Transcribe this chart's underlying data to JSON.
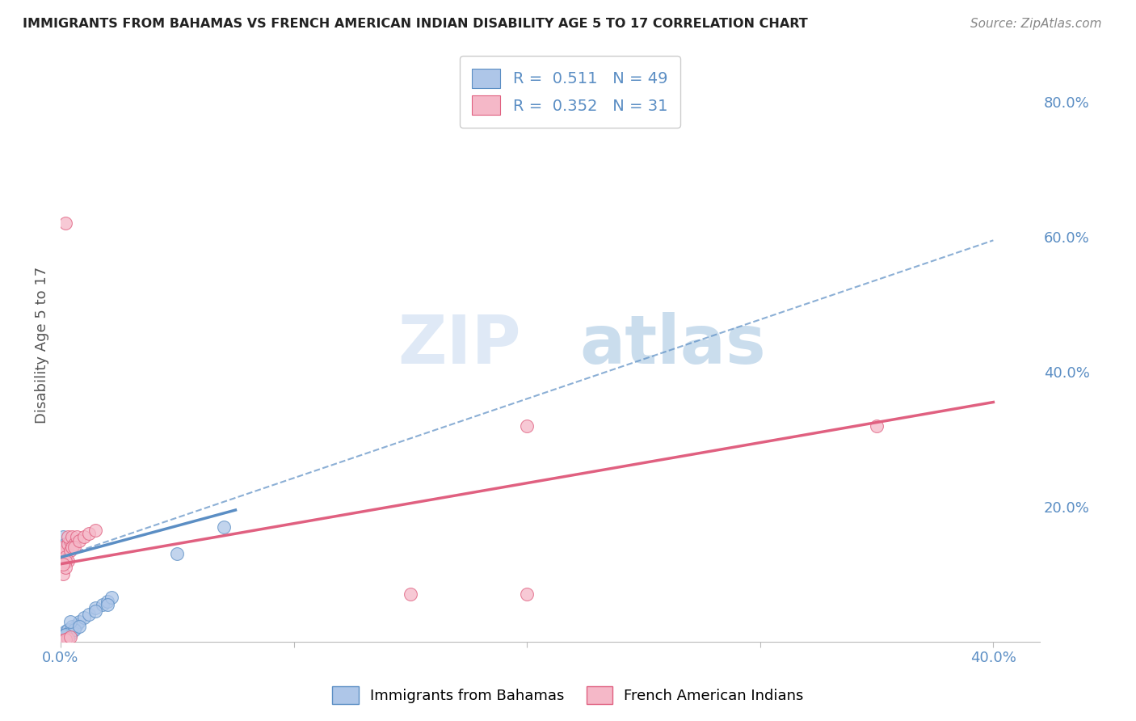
{
  "title": "IMMIGRANTS FROM BAHAMAS VS FRENCH AMERICAN INDIAN DISABILITY AGE 5 TO 17 CORRELATION CHART",
  "source": "Source: ZipAtlas.com",
  "ylabel": "Disability Age 5 to 17",
  "xlim": [
    0.0,
    0.42
  ],
  "ylim": [
    0.0,
    0.88
  ],
  "watermark": "ZIPatlas",
  "legend_blue_r": "0.511",
  "legend_blue_n": "49",
  "legend_pink_r": "0.352",
  "legend_pink_n": "31",
  "legend_label_blue": "Immigrants from Bahamas",
  "legend_label_pink": "French American Indians",
  "blue_color": "#aec6e8",
  "pink_color": "#f5b8c8",
  "blue_line_color": "#5b8ec4",
  "pink_line_color": "#e06080",
  "blue_scatter": [
    [
      0.001,
      0.005
    ],
    [
      0.002,
      0.008
    ],
    [
      0.001,
      0.003
    ],
    [
      0.003,
      0.01
    ],
    [
      0.002,
      0.012
    ],
    [
      0.001,
      0.006
    ],
    [
      0.004,
      0.015
    ],
    [
      0.002,
      0.007
    ],
    [
      0.003,
      0.009
    ],
    [
      0.001,
      0.004
    ],
    [
      0.002,
      0.011
    ],
    [
      0.003,
      0.013
    ],
    [
      0.001,
      0.002
    ],
    [
      0.004,
      0.018
    ],
    [
      0.002,
      0.005
    ],
    [
      0.005,
      0.014
    ],
    [
      0.003,
      0.016
    ],
    [
      0.006,
      0.02
    ],
    [
      0.004,
      0.01
    ],
    [
      0.002,
      0.003
    ],
    [
      0.001,
      0.008
    ],
    [
      0.001,
      0.012
    ],
    [
      0.002,
      0.015
    ],
    [
      0.003,
      0.018
    ],
    [
      0.001,
      0.001
    ],
    [
      0.002,
      0.004
    ],
    [
      0.001,
      0.007
    ],
    [
      0.003,
      0.011
    ],
    [
      0.007,
      0.025
    ],
    [
      0.005,
      0.022
    ],
    [
      0.008,
      0.03
    ],
    [
      0.006,
      0.018
    ],
    [
      0.01,
      0.035
    ],
    [
      0.012,
      0.04
    ],
    [
      0.015,
      0.05
    ],
    [
      0.018,
      0.055
    ],
    [
      0.02,
      0.06
    ],
    [
      0.022,
      0.065
    ],
    [
      0.004,
      0.03
    ],
    [
      0.008,
      0.022
    ],
    [
      0.015,
      0.045
    ],
    [
      0.02,
      0.055
    ],
    [
      0.001,
      0.155
    ],
    [
      0.002,
      0.145
    ],
    [
      0.003,
      0.14
    ],
    [
      0.05,
      0.13
    ],
    [
      0.07,
      0.17
    ],
    [
      0.001,
      0.009
    ],
    [
      0.002,
      0.01
    ]
  ],
  "pink_scatter": [
    [
      0.001,
      0.13
    ],
    [
      0.002,
      0.135
    ],
    [
      0.001,
      0.14
    ],
    [
      0.003,
      0.145
    ],
    [
      0.002,
      0.125
    ],
    [
      0.004,
      0.15
    ],
    [
      0.003,
      0.155
    ],
    [
      0.005,
      0.155
    ],
    [
      0.004,
      0.135
    ],
    [
      0.006,
      0.145
    ],
    [
      0.003,
      0.12
    ],
    [
      0.005,
      0.14
    ],
    [
      0.002,
      0.12
    ],
    [
      0.007,
      0.155
    ],
    [
      0.006,
      0.14
    ],
    [
      0.008,
      0.15
    ],
    [
      0.001,
      0.1
    ],
    [
      0.002,
      0.11
    ],
    [
      0.001,
      0.115
    ],
    [
      0.01,
      0.155
    ],
    [
      0.012,
      0.16
    ],
    [
      0.015,
      0.165
    ],
    [
      0.002,
      0.62
    ],
    [
      0.001,
      0.002
    ],
    [
      0.003,
      0.005
    ],
    [
      0.002,
      0.003
    ],
    [
      0.004,
      0.007
    ],
    [
      0.2,
      0.32
    ],
    [
      0.2,
      0.07
    ],
    [
      0.35,
      0.32
    ],
    [
      0.15,
      0.07
    ]
  ],
  "blue_trendline_solid": [
    [
      0.0,
      0.125
    ],
    [
      0.075,
      0.195
    ]
  ],
  "blue_trendline_dashed": [
    [
      0.0,
      0.125
    ],
    [
      0.4,
      0.595
    ]
  ],
  "pink_trendline": [
    [
      0.0,
      0.115
    ],
    [
      0.4,
      0.355
    ]
  ],
  "background_color": "#ffffff",
  "grid_color": "#d0d0d0",
  "grid_style": "--",
  "title_color": "#222222",
  "right_tick_color": "#5b8ec4",
  "ytick_positions": [
    0.0,
    0.2,
    0.4,
    0.6,
    0.8
  ],
  "ytick_labels": [
    "",
    "20.0%",
    "40.0%",
    "60.0%",
    "80.0%"
  ]
}
